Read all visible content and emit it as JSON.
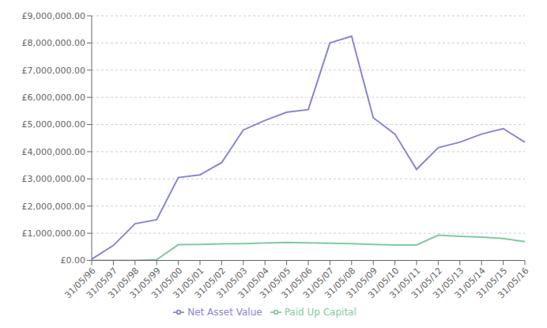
{
  "chart_data": {
    "type": "line",
    "categories": [
      "31/05/96",
      "31/05/97",
      "31/05/98",
      "31/05/99",
      "31/05/00",
      "31/05/01",
      "31/05/02",
      "31/05/03",
      "31/05/04",
      "31/05/05",
      "31/05/06",
      "31/05/07",
      "31/05/08",
      "31/05/09",
      "31/05/10",
      "31/05/11",
      "31/05/12",
      "31/05/13",
      "31/05/14",
      "31/05/15",
      "31/05/16"
    ],
    "series": [
      {
        "name": "Net Asset Value",
        "color": "#8884d8",
        "values": [
          50000,
          550000,
          1350000,
          1500000,
          3050000,
          3150000,
          3600000,
          4800000,
          5150000,
          5450000,
          5550000,
          8000000,
          8250000,
          5250000,
          4650000,
          3350000,
          4150000,
          4350000,
          4650000,
          4850000,
          4350000
        ]
      },
      {
        "name": "Paid Up Capital",
        "color": "#82ca9d",
        "values": [
          0,
          0,
          0,
          30000,
          580000,
          590000,
          610000,
          620000,
          640000,
          660000,
          650000,
          630000,
          620000,
          590000,
          570000,
          570000,
          930000,
          890000,
          860000,
          810000,
          690000
        ]
      }
    ],
    "ylim": [
      0,
      9000000
    ],
    "yticks": [
      {
        "value": 0,
        "label": "£0.00"
      },
      {
        "value": 1000000,
        "label": "£1,000,000.00"
      },
      {
        "value": 2000000,
        "label": "£2,000,000.00"
      },
      {
        "value": 3000000,
        "label": "£3,000,000.00"
      },
      {
        "value": 4000000,
        "label": "£4,000,000.00"
      },
      {
        "value": 5000000,
        "label": "£5,000,000.00"
      },
      {
        "value": 6000000,
        "label": "£6,000,000.00"
      },
      {
        "value": 7000000,
        "label": "£7,000,000.00"
      },
      {
        "value": 8000000,
        "label": "£8,000,000.00"
      },
      {
        "value": 9000000,
        "label": "£9,000,000.00"
      }
    ],
    "grid": true,
    "legend": "bottom"
  }
}
